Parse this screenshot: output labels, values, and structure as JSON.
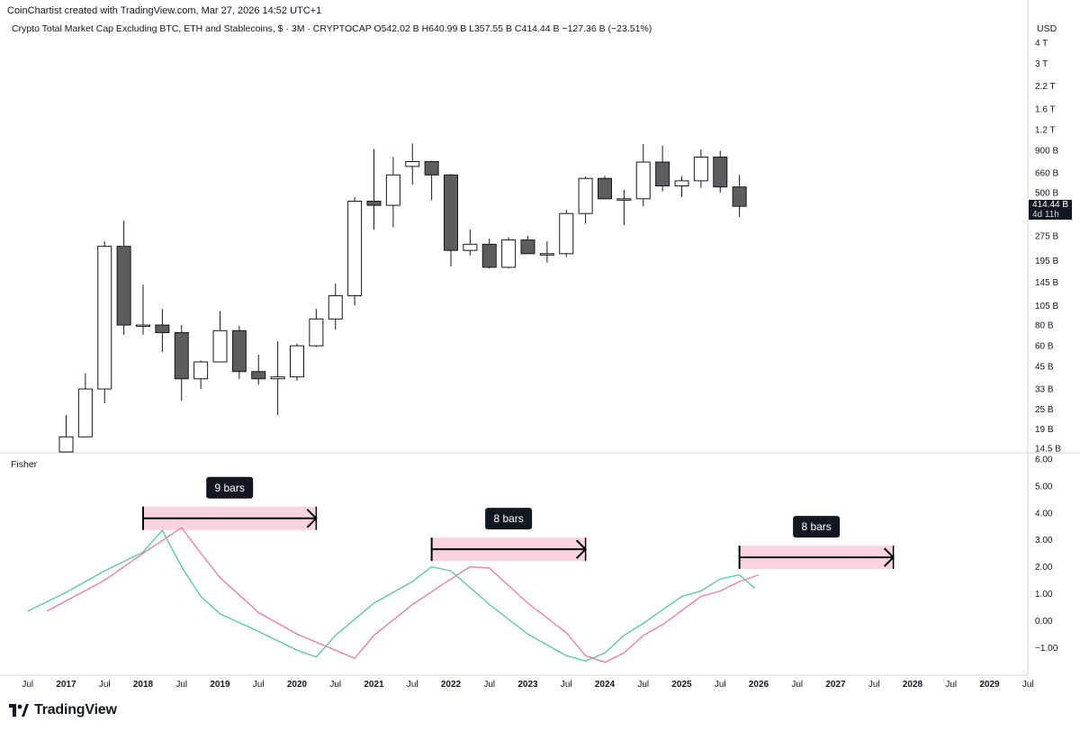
{
  "header": {
    "credit": "CoinChartist created with TradingView.com, Mar 27, 2026 14:52 UTC+1",
    "symbol_line": "Crypto Total Market Cap Excluding BTC, ETH and Stablecoins, $ · 3M · CRYPTOCAP   O542.02 B   H640.99 B   L357.55 B   C414.44 B   −127.36 B (−23.51%)",
    "currency": "USD"
  },
  "price_tag": {
    "value": "414.44 B",
    "countdown": "4d 11h"
  },
  "indicator_label": "Fisher",
  "branding": {
    "name": "TradingView"
  },
  "colors": {
    "bull_fill": "#ffffff",
    "bear_fill": "#5d5d5d",
    "wick": "#131722",
    "fisher_line": "#5cc8a8",
    "trigger_line": "#e8829f",
    "range_fill": "#f9d4df"
  },
  "chart_data": [
    {
      "type": "candlestick",
      "title": "Crypto Total Market Cap Excluding BTC, ETH and Stablecoins",
      "interval": "3M",
      "scale": "log",
      "y_ticks": [
        "4 T",
        "3 T",
        "2.2 T",
        "1.6 T",
        "1.2 T",
        "900 B",
        "660 B",
        "500 B",
        "275 B",
        "195 B",
        "145 B",
        "105 B",
        "80 B",
        "60 B",
        "45 B",
        "33 B",
        "25 B",
        "19 B",
        "14.5 B"
      ],
      "y_tick_values": [
        4000,
        3000,
        2200,
        1600,
        1200,
        900,
        660,
        500,
        275,
        195,
        145,
        105,
        80,
        60,
        45,
        33,
        25,
        19,
        14.5
      ],
      "x_ticks": [
        "Jul",
        "2017",
        "Jul",
        "2018",
        "Jul",
        "2019",
        "Jul",
        "2020",
        "Jul",
        "2021",
        "Jul",
        "2022",
        "Jul",
        "2023",
        "Jul",
        "2024",
        "Jul",
        "2025",
        "Jul",
        "2026",
        "Jul",
        "2027",
        "Jul",
        "2028",
        "Jul",
        "2029",
        "Jul"
      ],
      "candles": [
        {
          "date": "2017-01",
          "o": 11,
          "h": 23,
          "l": 10,
          "c": 17
        },
        {
          "date": "2017-04",
          "o": 17,
          "h": 41,
          "l": 17,
          "c": 33
        },
        {
          "date": "2017-07",
          "o": 33,
          "h": 255,
          "l": 27,
          "c": 238
        },
        {
          "date": "2017-10",
          "o": 238,
          "h": 340,
          "l": 70,
          "c": 80
        },
        {
          "date": "2018-01",
          "o": 80,
          "h": 140,
          "l": 70,
          "c": 80
        },
        {
          "date": "2018-04",
          "o": 80,
          "h": 100,
          "l": 55,
          "c": 72
        },
        {
          "date": "2018-07",
          "o": 72,
          "h": 80,
          "l": 28,
          "c": 38
        },
        {
          "date": "2018-10",
          "o": 38,
          "h": 49,
          "l": 33,
          "c": 48
        },
        {
          "date": "2019-01",
          "o": 48,
          "h": 97,
          "l": 48,
          "c": 74
        },
        {
          "date": "2019-04",
          "o": 74,
          "h": 79,
          "l": 38,
          "c": 42
        },
        {
          "date": "2019-07",
          "o": 42,
          "h": 53,
          "l": 35,
          "c": 38
        },
        {
          "date": "2019-10",
          "o": 38,
          "h": 64,
          "l": 23,
          "c": 39
        },
        {
          "date": "2020-01",
          "o": 39,
          "h": 62,
          "l": 37,
          "c": 60
        },
        {
          "date": "2020-04",
          "o": 60,
          "h": 100,
          "l": 59,
          "c": 87
        },
        {
          "date": "2020-07",
          "o": 87,
          "h": 142,
          "l": 75,
          "c": 120
        },
        {
          "date": "2020-10",
          "o": 120,
          "h": 470,
          "l": 105,
          "c": 445
        },
        {
          "date": "2021-01",
          "o": 445,
          "h": 915,
          "l": 300,
          "c": 420
        },
        {
          "date": "2021-04",
          "o": 420,
          "h": 820,
          "l": 310,
          "c": 640
        },
        {
          "date": "2021-07",
          "o": 720,
          "h": 990,
          "l": 560,
          "c": 770
        },
        {
          "date": "2021-10",
          "o": 770,
          "h": 780,
          "l": 450,
          "c": 640
        },
        {
          "date": "2022-01",
          "o": 640,
          "h": 650,
          "l": 180,
          "c": 225
        },
        {
          "date": "2022-04",
          "o": 225,
          "h": 300,
          "l": 210,
          "c": 245
        },
        {
          "date": "2022-07",
          "o": 245,
          "h": 265,
          "l": 175,
          "c": 178
        },
        {
          "date": "2022-10",
          "o": 178,
          "h": 270,
          "l": 175,
          "c": 260
        },
        {
          "date": "2023-01",
          "o": 260,
          "h": 275,
          "l": 215,
          "c": 215
        },
        {
          "date": "2023-04",
          "o": 215,
          "h": 255,
          "l": 190,
          "c": 215
        },
        {
          "date": "2023-07",
          "o": 215,
          "h": 395,
          "l": 205,
          "c": 375
        },
        {
          "date": "2023-10",
          "o": 375,
          "h": 625,
          "l": 325,
          "c": 610
        },
        {
          "date": "2024-01",
          "o": 610,
          "h": 630,
          "l": 460,
          "c": 460
        },
        {
          "date": "2024-04",
          "o": 460,
          "h": 520,
          "l": 320,
          "c": 460
        },
        {
          "date": "2024-07",
          "o": 460,
          "h": 980,
          "l": 415,
          "c": 765
        },
        {
          "date": "2024-10",
          "o": 765,
          "h": 960,
          "l": 510,
          "c": 550
        },
        {
          "date": "2025-01",
          "o": 550,
          "h": 630,
          "l": 470,
          "c": 590
        },
        {
          "date": "2025-04",
          "o": 590,
          "h": 910,
          "l": 535,
          "c": 820
        },
        {
          "date": "2025-07",
          "o": 820,
          "h": 895,
          "l": 500,
          "c": 542
        },
        {
          "date": "2025-10",
          "o": 542.02,
          "h": 640.99,
          "l": 357.55,
          "c": 414.44
        }
      ]
    },
    {
      "type": "line",
      "title": "Fisher",
      "y_ticks": [
        "6.00",
        "5.00",
        "4.00",
        "3.00",
        "2.00",
        "1.00",
        "0.00",
        "−1.00"
      ],
      "y_tick_values": [
        6,
        5,
        4,
        3,
        2,
        1,
        0,
        -1
      ],
      "series": [
        {
          "role": "fisher",
          "color": "#5cc8a8",
          "points": [
            [
              2016.5,
              0.35
            ],
            [
              2017.0,
              1.05
            ],
            [
              2017.5,
              1.85
            ],
            [
              2018.0,
              2.55
            ],
            [
              2018.25,
              3.35
            ],
            [
              2018.5,
              2.0
            ],
            [
              2018.75,
              0.9
            ],
            [
              2019.0,
              0.25
            ],
            [
              2019.5,
              -0.4
            ],
            [
              2020.0,
              -1.1
            ],
            [
              2020.25,
              -1.35
            ],
            [
              2020.5,
              -0.55
            ],
            [
              2021.0,
              0.65
            ],
            [
              2021.5,
              1.45
            ],
            [
              2021.75,
              2.0
            ],
            [
              2022.0,
              1.85
            ],
            [
              2022.5,
              0.6
            ],
            [
              2023.0,
              -0.5
            ],
            [
              2023.5,
              -1.3
            ],
            [
              2023.75,
              -1.5
            ],
            [
              2024.0,
              -1.2
            ],
            [
              2024.25,
              -0.55
            ],
            [
              2024.5,
              -0.1
            ],
            [
              2025.0,
              0.9
            ],
            [
              2025.25,
              1.1
            ],
            [
              2025.5,
              1.55
            ],
            [
              2025.75,
              1.7
            ],
            [
              2025.95,
              1.2
            ]
          ]
        },
        {
          "role": "trigger",
          "color": "#e8829f",
          "points": [
            [
              2016.75,
              0.35
            ],
            [
              2017.5,
              1.5
            ],
            [
              2018.0,
              2.5
            ],
            [
              2018.5,
              3.45
            ],
            [
              2018.75,
              2.5
            ],
            [
              2019.0,
              1.6
            ],
            [
              2019.5,
              0.3
            ],
            [
              2020.0,
              -0.5
            ],
            [
              2020.5,
              -1.1
            ],
            [
              2020.75,
              -1.4
            ],
            [
              2021.0,
              -0.55
            ],
            [
              2021.5,
              0.6
            ],
            [
              2022.0,
              1.55
            ],
            [
              2022.25,
              2.0
            ],
            [
              2022.5,
              1.95
            ],
            [
              2023.0,
              0.65
            ],
            [
              2023.5,
              -0.45
            ],
            [
              2023.75,
              -1.3
            ],
            [
              2024.0,
              -1.55
            ],
            [
              2024.25,
              -1.2
            ],
            [
              2024.5,
              -0.55
            ],
            [
              2024.75,
              -0.15
            ],
            [
              2025.25,
              0.9
            ],
            [
              2025.5,
              1.1
            ],
            [
              2025.75,
              1.45
            ],
            [
              2026.0,
              1.7
            ]
          ]
        }
      ],
      "annotations": [
        {
          "label": "9 bars",
          "x_start": 2018.0,
          "x_end": 2020.25,
          "level": 3.8
        },
        {
          "label": "8 bars",
          "x_start": 2021.75,
          "x_end": 2023.75,
          "level": 2.65
        },
        {
          "label": "8 bars",
          "x_start": 2025.75,
          "x_end": 2027.75,
          "level": 2.35
        }
      ]
    }
  ]
}
